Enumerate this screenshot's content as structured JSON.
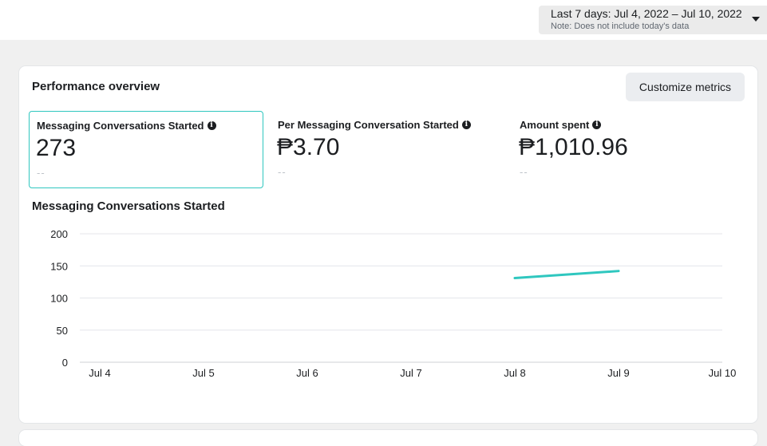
{
  "date_range": {
    "label": "Last 7 days: Jul 4, 2022 – Jul 10, 2022",
    "note": "Note: Does not include today's data"
  },
  "performance": {
    "title": "Performance overview",
    "customize_label": "Customize metrics",
    "metrics": [
      {
        "label": "Messaging Conversations Started",
        "value": "273",
        "comparison": "--",
        "selected": true
      },
      {
        "label": "Per Messaging Conversation Started",
        "value": "₱3.70",
        "comparison": "--",
        "selected": false
      },
      {
        "label": "Amount spent",
        "value": "₱1,010.96",
        "comparison": "--",
        "selected": false
      }
    ],
    "info_icon": "info-icon"
  },
  "chart_data": {
    "type": "line",
    "title": "Messaging Conversations Started",
    "categories": [
      "Jul 4",
      "Jul 5",
      "Jul 6",
      "Jul 7",
      "Jul 8",
      "Jul 9",
      "Jul 10"
    ],
    "series": [
      {
        "values": [
          null,
          null,
          null,
          null,
          131,
          142,
          null
        ],
        "color": "#2fc7bf"
      }
    ],
    "ylim": [
      0,
      200
    ],
    "yticks": [
      0,
      50,
      100,
      150,
      200
    ],
    "grid": true,
    "xlabel": "",
    "ylabel": ""
  }
}
